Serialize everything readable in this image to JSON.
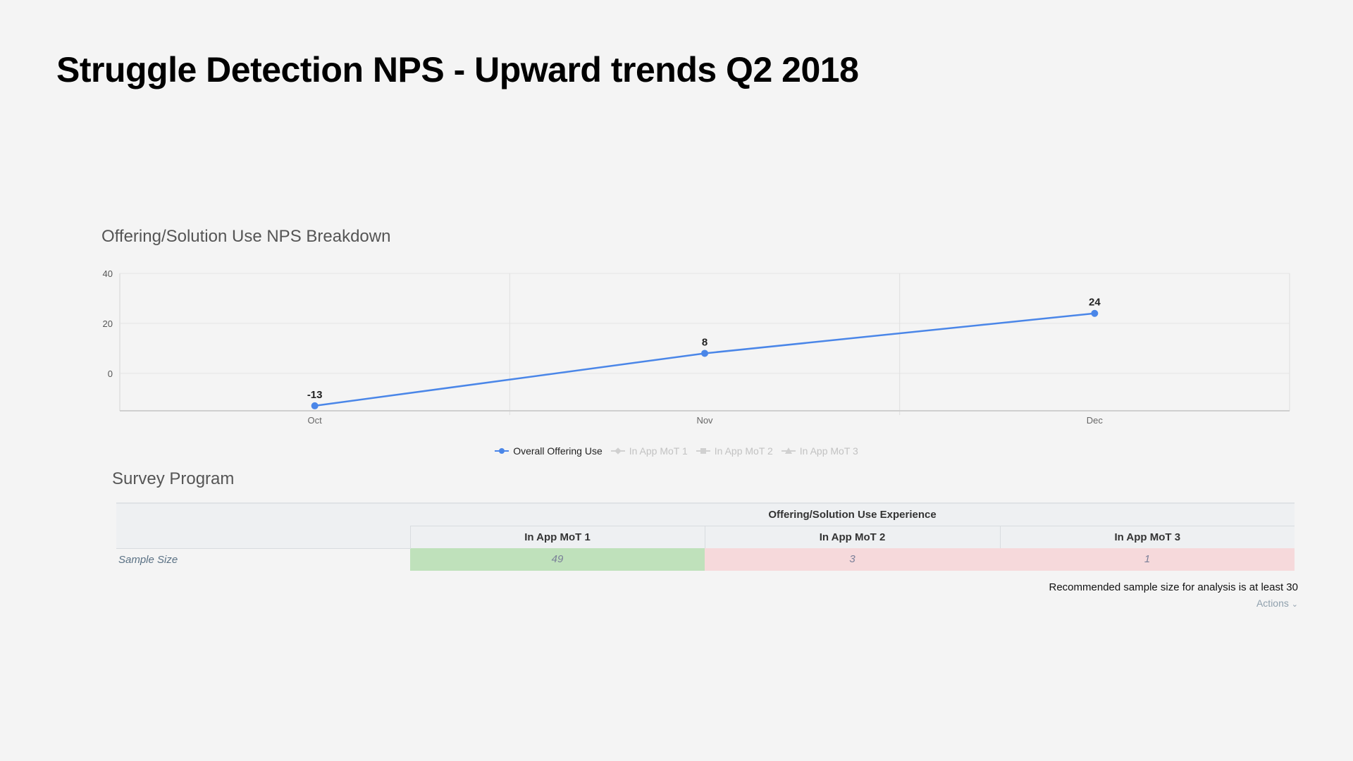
{
  "page": {
    "title": "Struggle Detection NPS - Upward trends Q2 2018"
  },
  "chart_data": {
    "type": "line",
    "title": "Offering/Solution Use NPS Breakdown",
    "xlabel": "",
    "ylabel": "",
    "categories": [
      "Oct",
      "Nov",
      "Dec"
    ],
    "ylim": [
      -15,
      40
    ],
    "yticks": [
      "40",
      "20",
      "0"
    ],
    "grid": true,
    "series": [
      {
        "name": "Overall Offering Use",
        "values": [
          -13,
          8,
          24
        ],
        "labels": [
          "-13",
          "8",
          "24"
        ],
        "color": "#4a86e8",
        "visible": true
      }
    ],
    "legend_placement": "bottom-center"
  },
  "legend": [
    {
      "label": "Overall Offering Use",
      "color": "#4a86e8",
      "marker": "circle",
      "active": true
    },
    {
      "label": "In App MoT 1",
      "color": "#c8c8c8",
      "marker": "diamond",
      "active": false
    },
    {
      "label": "In App MoT 2",
      "color": "#c8c8c8",
      "marker": "square",
      "active": false
    },
    {
      "label": "In App MoT 3",
      "color": "#c8c8c8",
      "marker": "triangle",
      "active": false
    }
  ],
  "survey": {
    "title": "Survey Program",
    "group_header": "Offering/Solution Use Experience",
    "columns": [
      "In App MoT 1",
      "In App MoT 2",
      "In App MoT 3"
    ],
    "row_label": "Sample Size",
    "values": [
      "49",
      "3",
      "1"
    ],
    "recommended_note": "Recommended sample size for analysis is at least 30",
    "actions_label": "Actions",
    "ok_color": "#bfe1bb",
    "low_color": "#f6d9db"
  }
}
